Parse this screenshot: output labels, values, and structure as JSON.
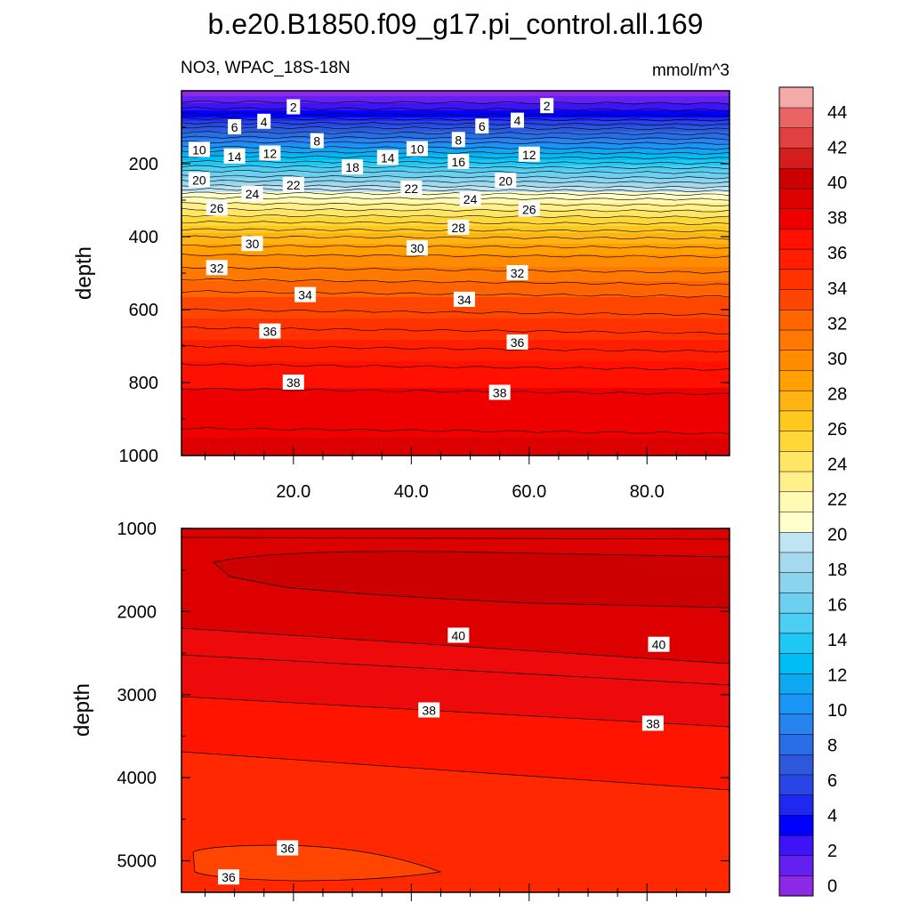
{
  "title": "b.e20.B1850.f09_g17.pi_control.all.169",
  "subtitle_left": "NO3, WPAC_18S-18N",
  "subtitle_right": "mmol/m^3",
  "chart_data": [
    {
      "type": "heatmap",
      "panel": "upper",
      "ylabel": "depth",
      "xlim": [
        1,
        94
      ],
      "ylim": [
        1000,
        0
      ],
      "x_ticks": [
        "20.0",
        "40.0",
        "60.0",
        "80.0"
      ],
      "x_tick_values": [
        20,
        40,
        60,
        80
      ],
      "y_ticks": [
        "200",
        "400",
        "600",
        "800",
        "1000"
      ],
      "y_tick_values": [
        200,
        400,
        600,
        800,
        1000
      ],
      "profile": {
        "depth": [
          0,
          40,
          70,
          100,
          140,
          180,
          220,
          260,
          285,
          300,
          350,
          400,
          450,
          500,
          550,
          600,
          650,
          700,
          750,
          800,
          850,
          900,
          1000
        ],
        "no3": [
          0.5,
          2.5,
          4.5,
          7,
          10,
          13,
          16,
          19,
          21.5,
          22.5,
          25.5,
          28,
          30,
          31.5,
          33,
          34,
          35,
          36,
          37,
          37.8,
          38.4,
          38.9,
          39.3
        ]
      },
      "contour_labels": [
        {
          "text": "2",
          "x": 20,
          "depth": 45
        },
        {
          "text": "2",
          "x": 63,
          "depth": 42
        },
        {
          "text": "4",
          "x": 15,
          "depth": 85
        },
        {
          "text": "4",
          "x": 58,
          "depth": 82
        },
        {
          "text": "6",
          "x": 10,
          "depth": 100
        },
        {
          "text": "6",
          "x": 52,
          "depth": 98
        },
        {
          "text": "8",
          "x": 24,
          "depth": 138
        },
        {
          "text": "8",
          "x": 48,
          "depth": 135
        },
        {
          "text": "10",
          "x": 4,
          "depth": 162
        },
        {
          "text": "10",
          "x": 41,
          "depth": 160
        },
        {
          "text": "12",
          "x": 16,
          "depth": 172
        },
        {
          "text": "12",
          "x": 60,
          "depth": 175
        },
        {
          "text": "14",
          "x": 10,
          "depth": 180
        },
        {
          "text": "14",
          "x": 36,
          "depth": 184
        },
        {
          "text": "16",
          "x": 48,
          "depth": 195
        },
        {
          "text": "18",
          "x": 30,
          "depth": 210
        },
        {
          "text": "20",
          "x": 4,
          "depth": 245
        },
        {
          "text": "20",
          "x": 56,
          "depth": 247
        },
        {
          "text": "22",
          "x": 20,
          "depth": 258
        },
        {
          "text": "22",
          "x": 40,
          "depth": 268
        },
        {
          "text": "24",
          "x": 13,
          "depth": 283
        },
        {
          "text": "24",
          "x": 50,
          "depth": 298
        },
        {
          "text": "26",
          "x": 7,
          "depth": 322
        },
        {
          "text": "26",
          "x": 60,
          "depth": 325
        },
        {
          "text": "28",
          "x": 48,
          "depth": 375
        },
        {
          "text": "30",
          "x": 13,
          "depth": 420
        },
        {
          "text": "30",
          "x": 41,
          "depth": 432
        },
        {
          "text": "32",
          "x": 7,
          "depth": 486
        },
        {
          "text": "32",
          "x": 58,
          "depth": 500
        },
        {
          "text": "34",
          "x": 22,
          "depth": 560
        },
        {
          "text": "34",
          "x": 49,
          "depth": 573
        },
        {
          "text": "36",
          "x": 16,
          "depth": 660
        },
        {
          "text": "36",
          "x": 58,
          "depth": 690
        },
        {
          "text": "38",
          "x": 20,
          "depth": 800
        },
        {
          "text": "38",
          "x": 55,
          "depth": 828
        }
      ]
    },
    {
      "type": "heatmap",
      "panel": "lower",
      "ylabel": "depth",
      "xlim": [
        1,
        94
      ],
      "ylim": [
        5380,
        1000
      ],
      "y_ticks": [
        "1000",
        "2000",
        "3000",
        "4000",
        "5000"
      ],
      "y_tick_values": [
        1000,
        2000,
        3000,
        4000,
        5000
      ],
      "regions": [
        {
          "value": "41-42",
          "color": "#cc0000"
        },
        {
          "value": "40-41",
          "color": "#dd0000"
        },
        {
          "value": "38-40",
          "color": "#ee0a0a"
        },
        {
          "value": "37-38",
          "color": "#ff1400"
        },
        {
          "value": "36-37",
          "color": "#ff2800"
        },
        {
          "value": "35-36",
          "color": "#ff4500"
        }
      ],
      "contour_labels": [
        {
          "text": "40",
          "x": 48,
          "depth": 2290
        },
        {
          "text": "40",
          "x": 82,
          "depth": 2400
        },
        {
          "text": "38",
          "x": 43,
          "depth": 3190
        },
        {
          "text": "38",
          "x": 81,
          "depth": 3350
        },
        {
          "text": "36",
          "x": 19,
          "depth": 4850
        },
        {
          "text": "36",
          "x": 9,
          "depth": 5200
        }
      ]
    }
  ],
  "colorbar": {
    "labels": [
      "0",
      "2",
      "4",
      "6",
      "8",
      "10",
      "12",
      "14",
      "16",
      "18",
      "20",
      "22",
      "24",
      "26",
      "28",
      "30",
      "32",
      "34",
      "36",
      "38",
      "40",
      "42",
      "44"
    ],
    "colors": [
      "#8c28e6",
      "#6420f0",
      "#3c14f5",
      "#0000ff",
      "#1e28f0",
      "#2846e6",
      "#2e58dc",
      "#2a6ee6",
      "#2882f0",
      "#1996f5",
      "#10a8f0",
      "#00bef5",
      "#1ec8f5",
      "#4ccdf2",
      "#6ed0f0",
      "#8cd4ed",
      "#a5d9ee",
      "#c0e4f2",
      "#ffffcc",
      "#fffab4",
      "#fff08c",
      "#ffe664",
      "#ffd838",
      "#ffc81e",
      "#ffb414",
      "#ffa000",
      "#ff8c00",
      "#ff7800",
      "#ff6400",
      "#ff4600",
      "#ff3200",
      "#ff1e00",
      "#ff1000",
      "#ee0000",
      "#dd0000",
      "#cc0000",
      "#d41e1e",
      "#e04040",
      "#eb6464",
      "#f5aaaa"
    ]
  }
}
